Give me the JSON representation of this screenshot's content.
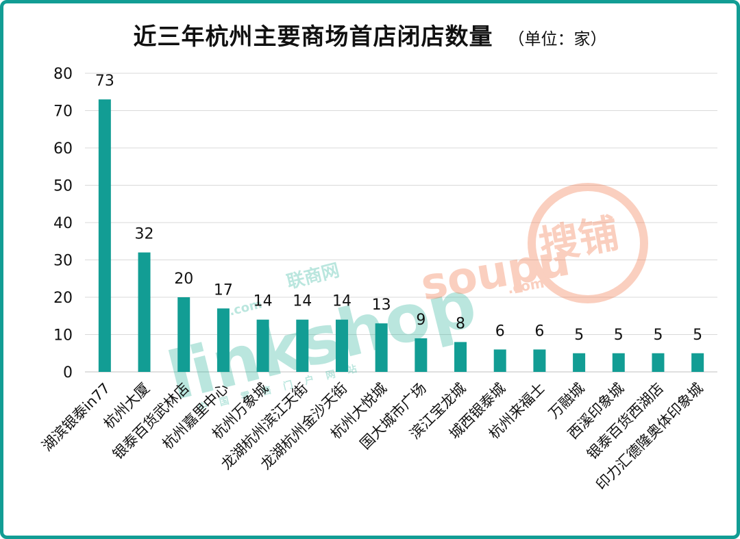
{
  "title": "近三年杭州主要商场首店闭店数量",
  "unit": "（单位：家）",
  "chart_data": {
    "type": "bar",
    "title": "近三年杭州主要商场首店闭店数量",
    "subtitle": "（单位：家）",
    "xlabel": "",
    "ylabel": "",
    "ylim": [
      0,
      80
    ],
    "yticks": [
      0,
      10,
      20,
      30,
      40,
      50,
      60,
      70,
      80
    ],
    "grid": true,
    "legend": "none",
    "categories": [
      "湖滨银泰in77",
      "杭州大厦",
      "银泰百货武林店",
      "杭州嘉里中心",
      "杭州万象城",
      "龙湖杭州滨江天街",
      "龙湖杭州金沙天街",
      "杭州大悦城",
      "国大城市广场",
      "滨江宝龙城",
      "城西银泰城",
      "杭州来福士",
      "万融城",
      "西溪印象城",
      "银泰百货西湖店",
      "印力汇德隆奥体印象城"
    ],
    "values": [
      73,
      32,
      20,
      17,
      14,
      14,
      14,
      13,
      9,
      8,
      6,
      6,
      5,
      5,
      5,
      5
    ],
    "bar_color": "#129d94"
  },
  "watermarks": {
    "left_brand": "linkshop",
    "left_cn": "联商网",
    "left_domain": ".com",
    "left_sub": "中国零售门户网站",
    "right_brand": "soupu",
    "right_cn": "搜铺",
    "right_domain": ".com",
    "left_color": "#2db39a",
    "right_color": "#f26b3a"
  },
  "colors": {
    "accent": "#129d94",
    "grid": "#d9d9d9",
    "text": "#111111"
  }
}
